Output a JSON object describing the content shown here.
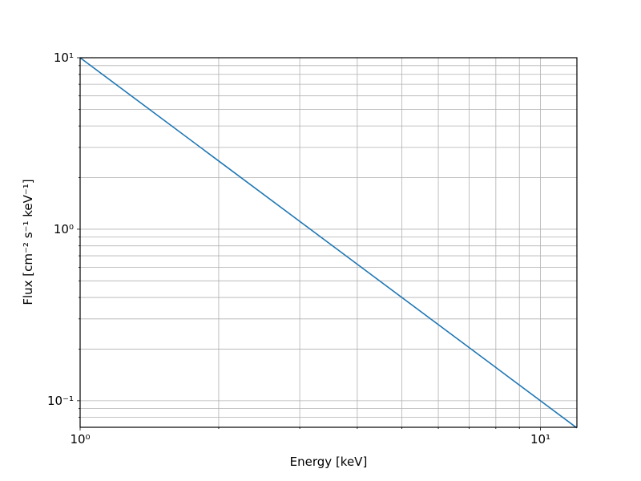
{
  "chart_data": {
    "type": "line",
    "xlabel": "Energy [keV]",
    "ylabel": "Flux [cm⁻² s⁻¹ keV⁻¹]",
    "x": [
      1,
      2,
      4,
      8,
      12
    ],
    "series": [
      {
        "color": "#1f77b4",
        "values": [
          10,
          2.5,
          0.625,
          0.15625,
          0.0694
        ]
      }
    ],
    "xscale": "log",
    "yscale": "log",
    "xlim": [
      1,
      12
    ],
    "ylim": [
      0.07,
      10
    ],
    "xticks": [
      {
        "value": 1,
        "label": "10⁰"
      },
      {
        "value": 10,
        "label": "10¹"
      }
    ],
    "yticks": [
      {
        "value": 0.1,
        "label": "10⁻¹"
      },
      {
        "value": 1,
        "label": "10⁰"
      },
      {
        "value": 10,
        "label": "10¹"
      }
    ],
    "xminorticks": [
      2,
      3,
      4,
      5,
      6,
      7,
      8,
      9
    ],
    "yminorticks": [
      0.08,
      0.09,
      0.2,
      0.3,
      0.4,
      0.5,
      0.6,
      0.7,
      0.8,
      0.9,
      2,
      3,
      4,
      5,
      6,
      7,
      8,
      9
    ],
    "grid": true
  }
}
